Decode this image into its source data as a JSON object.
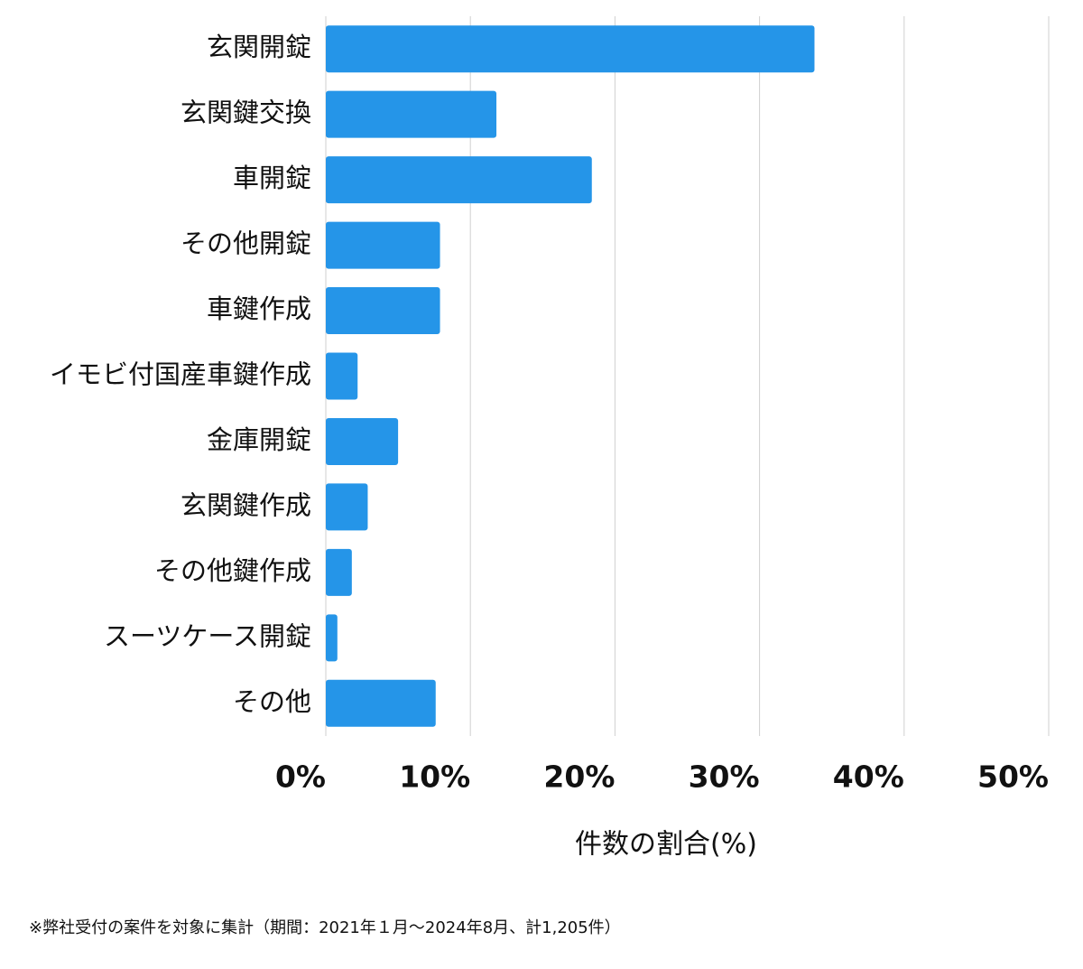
{
  "chart_data": {
    "type": "bar",
    "orientation": "horizontal",
    "categories": [
      "玄関開錠",
      "玄関鍵交換",
      "車開錠",
      "その他開錠",
      "車鍵作成",
      "イモビ付国産車鍵作成",
      "金庫開錠",
      "玄関鍵作成",
      "その他鍵作成",
      "スーツケース開錠",
      "その他"
    ],
    "values": [
      33.8,
      11.8,
      18.4,
      7.9,
      7.9,
      2.2,
      5.0,
      2.9,
      1.8,
      0.8,
      7.6
    ],
    "color": "#2595e8",
    "xlim": [
      0,
      50
    ],
    "xticks": [
      {
        "value": 0,
        "label": "0%"
      },
      {
        "value": 10,
        "label": "10%"
      },
      {
        "value": 20,
        "label": "20%"
      },
      {
        "value": 30,
        "label": "30%"
      },
      {
        "value": 40,
        "label": "40%"
      },
      {
        "value": 50,
        "label": "50%"
      }
    ],
    "grid": true,
    "xlabel": "件数の割合(%)",
    "footnote": "※弊社受付の案件を対象に集計（期間：2021年１月〜2024年8月、計1,205件）"
  }
}
